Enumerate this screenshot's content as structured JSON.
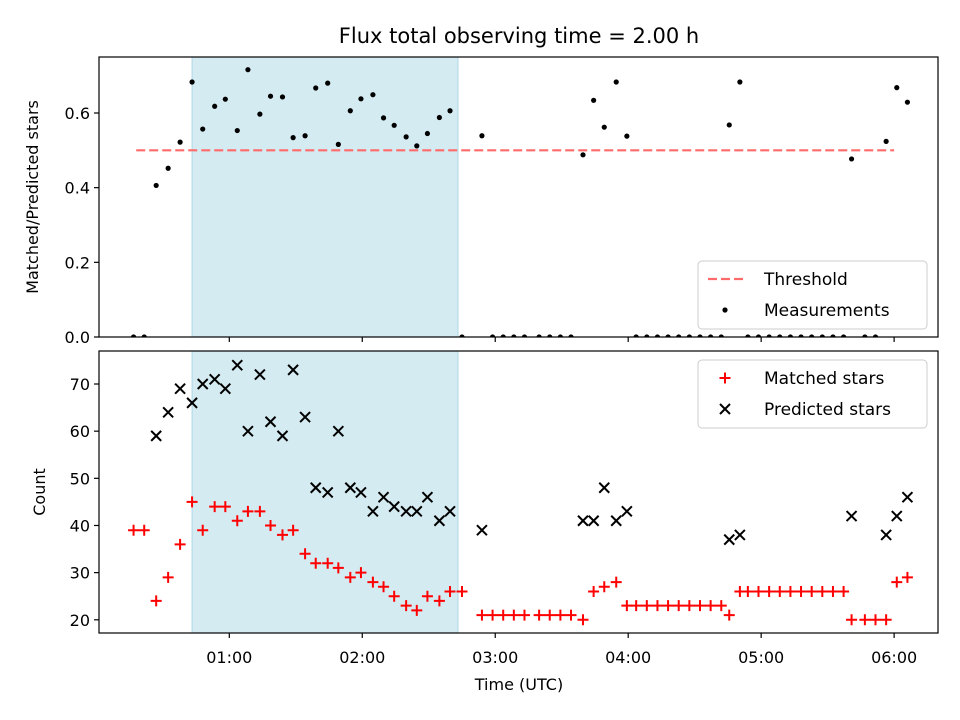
{
  "chart_data": {
    "title": "Flux total observing time = 2.00 h",
    "xlabel": "Time (UTC)",
    "x_ticks": [
      1.0,
      2.0,
      3.0,
      4.0,
      5.0,
      6.0
    ],
    "x_tick_labels": [
      "01:00",
      "02:00",
      "03:00",
      "04:00",
      "05:00",
      "06:00"
    ],
    "xlim": [
      0.02,
      6.33
    ],
    "shaded_interval": [
      0.72,
      2.72
    ],
    "shade_color": "#add8e6",
    "panels": [
      {
        "type": "scatter",
        "ylabel": "Matched/Predicted stars",
        "ylim": [
          0.0,
          0.75
        ],
        "y_ticks": [
          0.0,
          0.2,
          0.4,
          0.6
        ],
        "y_tick_labels": [
          "0.0",
          "0.2",
          "0.4",
          "0.6"
        ],
        "threshold": {
          "name": "Threshold",
          "value": 0.5,
          "x_range": [
            0.3,
            6.0
          ],
          "color": "#ff6b6b",
          "style": "dashed"
        },
        "series": [
          {
            "name": "Measurements",
            "color": "#000000",
            "marker": "dot",
            "points": [
              [
                0.28,
                0.0
              ],
              [
                0.36,
                0.0
              ],
              [
                0.45,
                0.406
              ],
              [
                0.54,
                0.452
              ],
              [
                0.63,
                0.522
              ],
              [
                0.72,
                0.683
              ],
              [
                0.8,
                0.557
              ],
              [
                0.89,
                0.618
              ],
              [
                0.97,
                0.637
              ],
              [
                1.06,
                0.553
              ],
              [
                1.14,
                0.716
              ],
              [
                1.23,
                0.597
              ],
              [
                1.31,
                0.645
              ],
              [
                1.4,
                0.643
              ],
              [
                1.48,
                0.534
              ],
              [
                1.57,
                0.539
              ],
              [
                1.65,
                0.667
              ],
              [
                1.74,
                0.68
              ],
              [
                1.82,
                0.516
              ],
              [
                1.91,
                0.606
              ],
              [
                1.99,
                0.638
              ],
              [
                2.08,
                0.649
              ],
              [
                2.16,
                0.587
              ],
              [
                2.24,
                0.567
              ],
              [
                2.33,
                0.536
              ],
              [
                2.41,
                0.512
              ],
              [
                2.49,
                0.545
              ],
              [
                2.58,
                0.588
              ],
              [
                2.66,
                0.606
              ],
              [
                2.75,
                0.0
              ],
              [
                2.9,
                0.539
              ],
              [
                2.98,
                0.0
              ],
              [
                3.06,
                0.0
              ],
              [
                3.14,
                0.0
              ],
              [
                3.22,
                0.0
              ],
              [
                3.33,
                0.0
              ],
              [
                3.41,
                0.0
              ],
              [
                3.49,
                0.0
              ],
              [
                3.57,
                0.0
              ],
              [
                3.66,
                0.488
              ],
              [
                3.74,
                0.634
              ],
              [
                3.82,
                0.562
              ],
              [
                3.91,
                0.683
              ],
              [
                3.99,
                0.538
              ],
              [
                4.06,
                0.0
              ],
              [
                4.14,
                0.0
              ],
              [
                4.22,
                0.0
              ],
              [
                4.3,
                0.0
              ],
              [
                4.38,
                0.0
              ],
              [
                4.46,
                0.0
              ],
              [
                4.54,
                0.0
              ],
              [
                4.62,
                0.0
              ],
              [
                4.7,
                0.0
              ],
              [
                4.76,
                0.568
              ],
              [
                4.84,
                0.683
              ],
              [
                4.9,
                0.0
              ],
              [
                4.98,
                0.0
              ],
              [
                5.06,
                0.0
              ],
              [
                5.14,
                0.0
              ],
              [
                5.22,
                0.0
              ],
              [
                5.3,
                0.0
              ],
              [
                5.38,
                0.0
              ],
              [
                5.46,
                0.0
              ],
              [
                5.54,
                0.0
              ],
              [
                5.62,
                0.0
              ],
              [
                5.68,
                0.477
              ],
              [
                5.78,
                0.0
              ],
              [
                5.86,
                0.0
              ],
              [
                5.94,
                0.524
              ],
              [
                6.02,
                0.668
              ],
              [
                6.1,
                0.629
              ]
            ]
          }
        ],
        "legend": {
          "location": "lower right",
          "entries": [
            "Threshold",
            "Measurements"
          ]
        }
      },
      {
        "type": "scatter",
        "ylabel": "Count",
        "ylim": [
          17.2,
          77.0
        ],
        "y_ticks": [
          20,
          30,
          40,
          50,
          60,
          70
        ],
        "y_tick_labels": [
          "20",
          "30",
          "40",
          "50",
          "60",
          "70"
        ],
        "series": [
          {
            "name": "Matched stars",
            "color": "#ff0000",
            "marker": "plus",
            "points": [
              [
                0.28,
                39
              ],
              [
                0.36,
                39
              ],
              [
                0.45,
                24
              ],
              [
                0.54,
                29
              ],
              [
                0.63,
                36
              ],
              [
                0.72,
                45
              ],
              [
                0.8,
                39
              ],
              [
                0.89,
                44
              ],
              [
                0.97,
                44
              ],
              [
                1.06,
                41
              ],
              [
                1.14,
                43
              ],
              [
                1.23,
                43
              ],
              [
                1.31,
                40
              ],
              [
                1.4,
                38
              ],
              [
                1.48,
                39
              ],
              [
                1.57,
                34
              ],
              [
                1.65,
                32
              ],
              [
                1.74,
                32
              ],
              [
                1.82,
                31
              ],
              [
                1.91,
                29
              ],
              [
                1.99,
                30
              ],
              [
                2.08,
                28
              ],
              [
                2.16,
                27
              ],
              [
                2.24,
                25
              ],
              [
                2.33,
                23
              ],
              [
                2.41,
                22
              ],
              [
                2.49,
                25
              ],
              [
                2.58,
                24
              ],
              [
                2.66,
                26
              ],
              [
                2.75,
                26
              ],
              [
                2.9,
                21
              ],
              [
                2.98,
                21
              ],
              [
                3.06,
                21
              ],
              [
                3.14,
                21
              ],
              [
                3.22,
                21
              ],
              [
                3.33,
                21
              ],
              [
                3.41,
                21
              ],
              [
                3.49,
                21
              ],
              [
                3.57,
                21
              ],
              [
                3.66,
                20
              ],
              [
                3.74,
                26
              ],
              [
                3.82,
                27
              ],
              [
                3.91,
                28
              ],
              [
                3.99,
                23
              ],
              [
                4.06,
                23
              ],
              [
                4.14,
                23
              ],
              [
                4.22,
                23
              ],
              [
                4.3,
                23
              ],
              [
                4.38,
                23
              ],
              [
                4.46,
                23
              ],
              [
                4.54,
                23
              ],
              [
                4.62,
                23
              ],
              [
                4.7,
                23
              ],
              [
                4.76,
                21
              ],
              [
                4.84,
                26
              ],
              [
                4.9,
                26
              ],
              [
                4.98,
                26
              ],
              [
                5.06,
                26
              ],
              [
                5.14,
                26
              ],
              [
                5.22,
                26
              ],
              [
                5.3,
                26
              ],
              [
                5.38,
                26
              ],
              [
                5.46,
                26
              ],
              [
                5.54,
                26
              ],
              [
                5.62,
                26
              ],
              [
                5.68,
                20
              ],
              [
                5.78,
                20
              ],
              [
                5.86,
                20
              ],
              [
                5.94,
                20
              ],
              [
                6.02,
                28
              ],
              [
                6.1,
                29
              ]
            ]
          },
          {
            "name": "Predicted stars",
            "color": "#000000",
            "marker": "x",
            "points": [
              [
                0.45,
                59
              ],
              [
                0.54,
                64
              ],
              [
                0.63,
                69
              ],
              [
                0.72,
                66
              ],
              [
                0.8,
                70
              ],
              [
                0.89,
                71
              ],
              [
                0.97,
                69
              ],
              [
                1.06,
                74
              ],
              [
                1.14,
                60
              ],
              [
                1.23,
                72
              ],
              [
                1.31,
                62
              ],
              [
                1.4,
                59
              ],
              [
                1.48,
                73
              ],
              [
                1.57,
                63
              ],
              [
                1.65,
                48
              ],
              [
                1.74,
                47
              ],
              [
                1.82,
                60
              ],
              [
                1.91,
                48
              ],
              [
                1.99,
                47
              ],
              [
                2.08,
                43
              ],
              [
                2.16,
                46
              ],
              [
                2.24,
                44
              ],
              [
                2.33,
                43
              ],
              [
                2.41,
                43
              ],
              [
                2.49,
                46
              ],
              [
                2.58,
                41
              ],
              [
                2.66,
                43
              ],
              [
                2.9,
                39
              ],
              [
                3.66,
                41
              ],
              [
                3.74,
                41
              ],
              [
                3.82,
                48
              ],
              [
                3.91,
                41
              ],
              [
                3.99,
                43
              ],
              [
                4.76,
                37
              ],
              [
                4.84,
                38
              ],
              [
                5.68,
                42
              ],
              [
                5.94,
                38
              ],
              [
                6.02,
                42
              ],
              [
                6.1,
                46
              ]
            ]
          }
        ],
        "legend": {
          "location": "upper right",
          "entries": [
            "Matched stars",
            "Predicted stars"
          ]
        }
      }
    ]
  }
}
